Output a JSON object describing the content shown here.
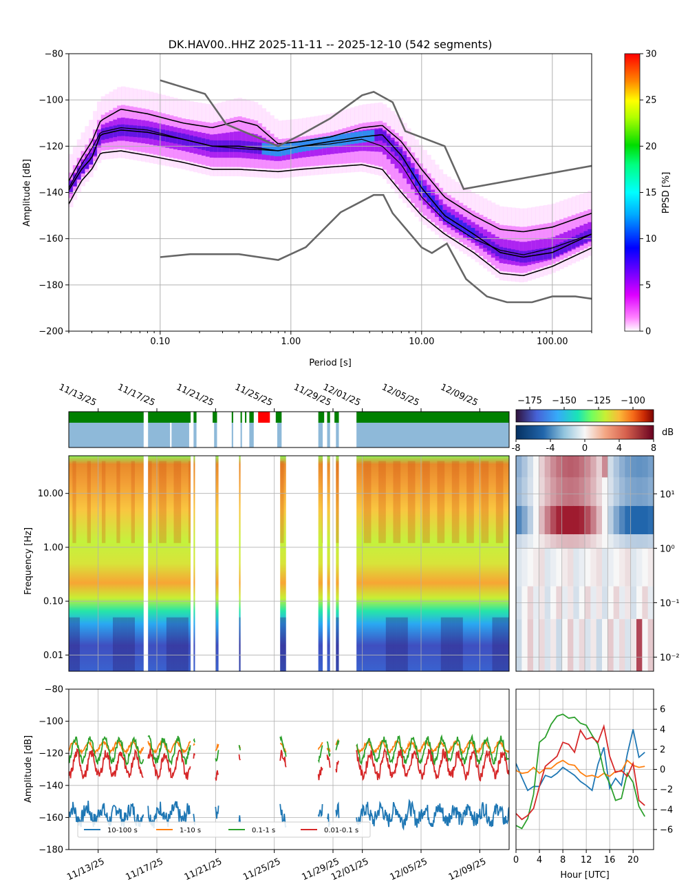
{
  "chart_data": [
    {
      "id": "ppsd",
      "type": "heatmap",
      "title": "DK.HAV00..HHZ   2025-11-11 -- 2025-12-10  (542 segments)",
      "xlabel": "Period [s]",
      "ylabel": "Amplitude [dB]",
      "xscale": "log",
      "xlim": [
        0.02,
        200
      ],
      "ylim": [
        -200,
        -80
      ],
      "x_ticks": [
        0.1,
        1,
        10,
        100
      ],
      "x_tick_labels": [
        "0.10",
        "1.00",
        "10.00",
        "100.00"
      ],
      "y_ticks": [
        -200,
        -180,
        -160,
        -140,
        -120,
        -100,
        -80
      ],
      "y_tick_labels": [
        "−200",
        "−180",
        "−160",
        "−140",
        "−120",
        "−100",
        "−80"
      ],
      "colorbar": {
        "label": "PPSD [%]",
        "range": [
          0,
          30
        ],
        "ticks": [
          0,
          5,
          10,
          15,
          20,
          25,
          30
        ],
        "tick_labels": [
          "0",
          "5",
          "10",
          "15",
          "20",
          "25",
          "30"
        ]
      },
      "percentile_lines": [
        {
          "name": "upper",
          "points": [
            [
              0.02,
              -135
            ],
            [
              0.025,
              -125
            ],
            [
              0.03,
              -118
            ],
            [
              0.035,
              -109
            ],
            [
              0.05,
              -104
            ],
            [
              0.08,
              -106
            ],
            [
              0.15,
              -110
            ],
            [
              0.25,
              -112
            ],
            [
              0.4,
              -109
            ],
            [
              0.55,
              -111
            ],
            [
              0.8,
              -119
            ],
            [
              1.2,
              -118
            ],
            [
              2,
              -116
            ],
            [
              3.5,
              -112
            ],
            [
              5,
              -111
            ],
            [
              7,
              -118
            ],
            [
              10,
              -130
            ],
            [
              15,
              -142
            ],
            [
              25,
              -150
            ],
            [
              40,
              -156
            ],
            [
              60,
              -157
            ],
            [
              100,
              -155
            ],
            [
              200,
              -149
            ]
          ]
        },
        {
          "name": "median",
          "points": [
            [
              0.02,
              -139
            ],
            [
              0.025,
              -130
            ],
            [
              0.03,
              -125
            ],
            [
              0.035,
              -115
            ],
            [
              0.05,
              -113
            ],
            [
              0.08,
              -114
            ],
            [
              0.15,
              -117
            ],
            [
              0.25,
              -120
            ],
            [
              0.4,
              -120
            ],
            [
              0.6,
              -121
            ],
            [
              0.8,
              -122
            ],
            [
              1.2,
              -120
            ],
            [
              2,
              -118
            ],
            [
              3.5,
              -116
            ],
            [
              5,
              -115
            ],
            [
              7,
              -124
            ],
            [
              10,
              -138
            ],
            [
              15,
              -150
            ],
            [
              25,
              -158
            ],
            [
              40,
              -166
            ],
            [
              60,
              -168
            ],
            [
              100,
              -166
            ],
            [
              200,
              -158
            ]
          ]
        },
        {
          "name": "lower",
          "points": [
            [
              0.02,
              -145
            ],
            [
              0.025,
              -135
            ],
            [
              0.03,
              -130
            ],
            [
              0.035,
              -123
            ],
            [
              0.05,
              -122
            ],
            [
              0.08,
              -124
            ],
            [
              0.15,
              -127
            ],
            [
              0.25,
              -130
            ],
            [
              0.4,
              -130
            ],
            [
              0.8,
              -131
            ],
            [
              1.2,
              -130
            ],
            [
              2,
              -129
            ],
            [
              3.5,
              -128
            ],
            [
              5,
              -130
            ],
            [
              7,
              -140
            ],
            [
              10,
              -150
            ],
            [
              15,
              -158
            ],
            [
              25,
              -166
            ],
            [
              40,
              -175
            ],
            [
              60,
              -176
            ],
            [
              100,
              -172
            ],
            [
              200,
              -164
            ]
          ]
        },
        {
          "name": "mean",
          "points": [
            [
              0.02,
              -138
            ],
            [
              0.025,
              -128
            ],
            [
              0.03,
              -121
            ],
            [
              0.035,
              -114
            ],
            [
              0.05,
              -112
            ],
            [
              0.08,
              -113
            ],
            [
              0.15,
              -117
            ],
            [
              0.25,
              -120
            ],
            [
              0.4,
              -121
            ],
            [
              0.8,
              -122
            ],
            [
              1.2,
              -120
            ],
            [
              2,
              -119
            ],
            [
              3.5,
              -117
            ],
            [
              5,
              -120
            ],
            [
              7,
              -128
            ],
            [
              10,
              -142
            ],
            [
              15,
              -152
            ],
            [
              25,
              -160
            ],
            [
              40,
              -165
            ],
            [
              60,
              -167
            ],
            [
              100,
              -164
            ],
            [
              200,
              -158
            ]
          ]
        }
      ],
      "noise_models": [
        {
          "name": "NHNM",
          "points": [
            [
              0.1,
              -91.5
            ],
            [
              0.22,
              -97.4
            ],
            [
              0.32,
              -110.5
            ],
            [
              0.8,
              -120
            ],
            [
              1.2,
              -115
            ],
            [
              2,
              -108
            ],
            [
              3.5,
              -98
            ],
            [
              4.3,
              -96.5
            ],
            [
              6,
              -101
            ],
            [
              7.5,
              -113.5
            ],
            [
              15,
              -120
            ],
            [
              21,
              -138.5
            ],
            [
              200,
              -128.5
            ]
          ]
        },
        {
          "name": "NLNM",
          "points": [
            [
              0.1,
              -168
            ],
            [
              0.17,
              -166.7
            ],
            [
              0.4,
              -166.7
            ],
            [
              0.8,
              -169.2
            ],
            [
              1.3,
              -163.7
            ],
            [
              2.4,
              -148.6
            ],
            [
              4.3,
              -141.1
            ],
            [
              5.1,
              -141.1
            ],
            [
              6,
              -149
            ],
            [
              10,
              -163.8
            ],
            [
              12,
              -166.2
            ],
            [
              15.6,
              -162.1
            ],
            [
              21.9,
              -177.5
            ],
            [
              31.6,
              -185
            ],
            [
              45,
              -187.5
            ],
            [
              70,
              -187.5
            ],
            [
              100,
              -185
            ],
            [
              150,
              -185
            ],
            [
              200,
              -186
            ]
          ]
        }
      ]
    },
    {
      "id": "spectrogram",
      "type": "heatmap",
      "ylabel": "Frequency [Hz]",
      "yscale": "log",
      "ylim": [
        0.005,
        50
      ],
      "y_ticks": [
        0.01,
        0.1,
        1,
        10
      ],
      "y_tick_labels": [
        "0.01",
        "0.10",
        "1.00",
        "10.00"
      ],
      "x_tick_labels": [
        "11/13/25",
        "11/17/25",
        "11/21/25",
        "11/25/25",
        "11/29/25",
        "12/01/25",
        "12/05/25",
        "12/09/25"
      ],
      "x_tick_days": [
        2,
        6,
        10,
        14,
        18,
        20,
        24,
        28
      ],
      "day_range": [
        0,
        30
      ],
      "colorbar_top": {
        "range": [
          -185,
          -85
        ],
        "ticks": [
          -175,
          -150,
          -125,
          -100
        ],
        "tick_labels": [
          "−175",
          "−150",
          "−125",
          "−100"
        ]
      },
      "colorbar_bottom": {
        "label": "dB",
        "range": [
          -8,
          8
        ],
        "ticks": [
          -8,
          -4,
          0,
          4,
          8
        ],
        "tick_labels": [
          "-8",
          "-4",
          "0",
          "4",
          "8"
        ]
      },
      "data_segments_days": [
        [
          0,
          5.1
        ],
        [
          5.4,
          8.3
        ],
        [
          8.5,
          8.6
        ],
        [
          10,
          10.2
        ],
        [
          11.6,
          11.7
        ],
        [
          14.4,
          14.8
        ],
        [
          17,
          17.3
        ],
        [
          17.6,
          17.8
        ],
        [
          18.2,
          18.4
        ],
        [
          19.6,
          30
        ]
      ],
      "availability": {
        "green_days": [
          [
            0,
            5.1
          ],
          [
            5.4,
            8.3
          ],
          [
            8.5,
            8.7
          ],
          [
            9.8,
            10.1
          ],
          [
            11.1,
            11.2
          ],
          [
            11.7,
            11.8
          ],
          [
            12.0,
            12.1
          ],
          [
            12.3,
            12.6
          ],
          [
            14.1,
            14.5
          ],
          [
            17.0,
            17.4
          ],
          [
            17.6,
            17.8
          ],
          [
            18.1,
            18.4
          ],
          [
            19.6,
            30
          ]
        ],
        "red_days": [
          [
            12.9,
            13.7
          ]
        ],
        "blue_days": [
          [
            0,
            5.1
          ],
          [
            5.4,
            6.9
          ],
          [
            7.0,
            8.2
          ],
          [
            8.5,
            8.7
          ],
          [
            9.9,
            10.1
          ],
          [
            11.1,
            11.2
          ],
          [
            11.7,
            11.8
          ],
          [
            12.3,
            12.6
          ],
          [
            14.2,
            14.5
          ],
          [
            17.0,
            17.3
          ],
          [
            17.6,
            17.8
          ],
          [
            18.2,
            18.4
          ],
          [
            19.6,
            30
          ]
        ]
      }
    },
    {
      "id": "hourly-diff",
      "type": "heatmap",
      "ylabel_ticks": [
        "10¹",
        "10⁰",
        "10⁻¹",
        "10⁻²"
      ],
      "y_ticks": [
        10,
        1,
        0.1,
        0.01
      ],
      "xlim": [
        0,
        24
      ]
    },
    {
      "id": "band-timeseries",
      "type": "line",
      "ylabel": "Amplitude [dB]",
      "ylim": [
        -180,
        -80
      ],
      "y_ticks": [
        -180,
        -160,
        -140,
        -120,
        -100,
        -80
      ],
      "y_tick_labels": [
        "−180",
        "−160",
        "−140",
        "−120",
        "−100",
        "−80"
      ],
      "x_tick_labels": [
        "11/13/25",
        "11/17/25",
        "11/21/25",
        "11/25/25",
        "11/29/25",
        "12/01/25",
        "12/05/25",
        "12/09/25"
      ],
      "x_tick_days": [
        2,
        6,
        10,
        14,
        18,
        20,
        24,
        28
      ],
      "legend": [
        "10-100 s",
        "1-10 s",
        "0.1-1 s",
        "0.01-0.1 s"
      ],
      "series": [
        {
          "name": "10-100 s",
          "color": "#1f77b4",
          "base": -158,
          "amp": 4,
          "noise": 5
        },
        {
          "name": "1-10 s",
          "color": "#ff7f0e",
          "base": -116,
          "amp": 3,
          "noise": 1
        },
        {
          "name": "0.1-1 s",
          "color": "#2ca02c",
          "base": -118,
          "amp": 7,
          "noise": 2
        },
        {
          "name": "0.01-0.1 s",
          "color": "#d62728",
          "base": -127,
          "amp": 7,
          "noise": 3
        }
      ]
    },
    {
      "id": "hourly-anomaly",
      "type": "line",
      "xlabel": "Hour [UTC]",
      "xlim": [
        0,
        23.5
      ],
      "ylim": [
        -8,
        8
      ],
      "x_ticks": [
        0,
        4,
        8,
        12,
        16,
        20
      ],
      "x_tick_labels": [
        "0",
        "4",
        "8",
        "12",
        "16",
        "20"
      ],
      "y_ticks": [
        -6,
        -4,
        -2,
        0,
        2,
        4,
        6
      ],
      "y_tick_labels": [
        "−6",
        "−4",
        "−2",
        "0",
        "2",
        "4",
        "6"
      ],
      "hours": [
        0,
        1,
        2,
        3,
        4,
        5,
        6,
        7,
        8,
        9,
        10,
        11,
        12,
        13,
        14,
        15,
        16,
        17,
        18,
        19,
        20,
        21,
        22
      ],
      "series": [
        {
          "name": "10-100 s",
          "color": "#1f77b4",
          "values": [
            0.6,
            -0.8,
            -2.1,
            -1.7,
            -1.7,
            -0.6,
            -0.8,
            -0.4,
            0.2,
            -0.2,
            -0.6,
            -1.2,
            -1.6,
            -2.1,
            0.5,
            2.2,
            -1.9,
            -0.9,
            -1.6,
            1.5,
            4.0,
            1.2,
            1.7
          ]
        },
        {
          "name": "1-10 s",
          "color": "#ff7f0e",
          "values": [
            -0.1,
            -0.4,
            -0.3,
            0.2,
            -0.4,
            0.1,
            0.1,
            0.6,
            0.9,
            0.5,
            0.4,
            -0.3,
            -0.7,
            -0.6,
            -0.8,
            -0.4,
            -0.7,
            -0.2,
            -0.2,
            0.9,
            0.4,
            0.2,
            0.3
          ]
        },
        {
          "name": "0.1-1 s",
          "color": "#2ca02c",
          "values": [
            -5.6,
            -5.9,
            -4.9,
            -2.5,
            2.7,
            3.2,
            4.5,
            5.3,
            5.5,
            5.1,
            5.2,
            4.6,
            4.4,
            3.4,
            2.5,
            -0.2,
            -1.4,
            -3.1,
            -2.9,
            -0.4,
            -1.3,
            -3.7,
            -4.7
          ]
        },
        {
          "name": "0.01-0.1 s",
          "color": "#d62728",
          "values": [
            -4.4,
            -5.0,
            -4.6,
            -3.9,
            -1.7,
            0.3,
            0.8,
            1.3,
            2.7,
            2.5,
            1.7,
            3.9,
            3.0,
            3.2,
            2.7,
            4.3,
            1.3,
            -0.3,
            -0.1,
            -0.7,
            0.6,
            -3.1,
            -3.6
          ]
        }
      ]
    }
  ]
}
